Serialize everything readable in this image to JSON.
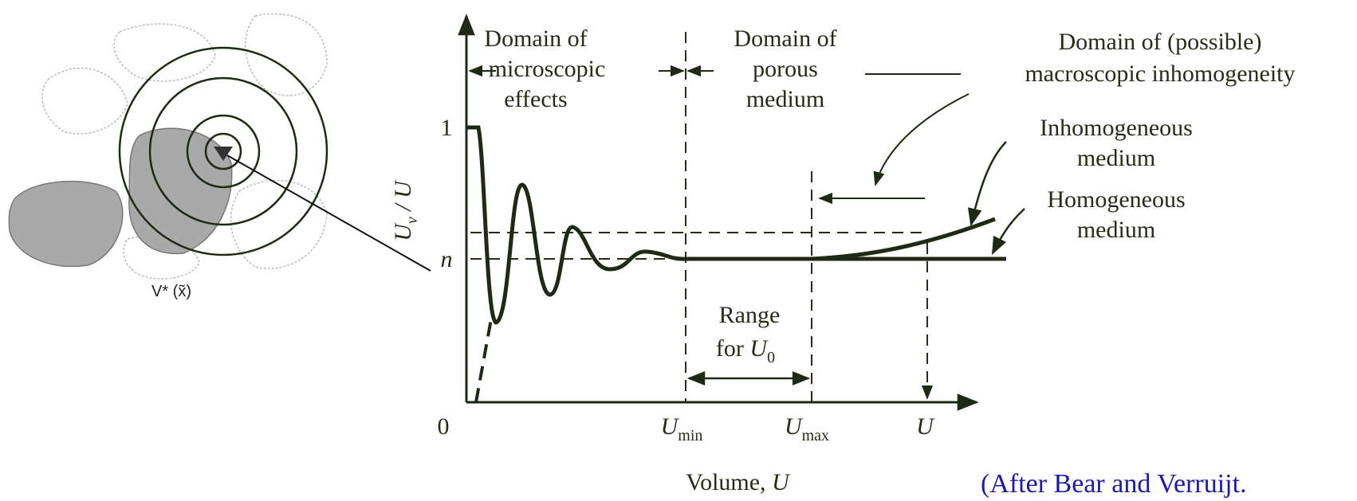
{
  "inset": {
    "label": "V* (x̃)"
  },
  "diagram": {
    "y_axis_label": {
      "main": "U",
      "sub": "v",
      "tail": " / U"
    },
    "y_ticks": [
      "1",
      "n"
    ],
    "origin": "0",
    "x_ticks": [
      {
        "main": "U",
        "sub": "min"
      },
      {
        "main": "U",
        "sub": "max"
      },
      {
        "main": "U"
      }
    ],
    "x_axis_label": {
      "text": "Volume, ",
      "var": "U"
    },
    "domains": [
      {
        "lines": [
          "Domain of",
          "microscopic",
          "effects"
        ]
      },
      {
        "lines": [
          "Domain of",
          "porous",
          "medium"
        ]
      },
      {
        "lines": [
          "Domain of (possible)",
          "macroscopic inhomogeneity"
        ]
      }
    ],
    "curve_labels": [
      {
        "lines": [
          "Inhomogeneous",
          "medium"
        ]
      },
      {
        "lines": [
          "Homogeneous",
          "medium"
        ]
      }
    ],
    "range_label": {
      "line1": "Range",
      "line2": "for ",
      "var": "U",
      "sub": "0"
    }
  },
  "source": "(After Bear and Verruijt."
}
